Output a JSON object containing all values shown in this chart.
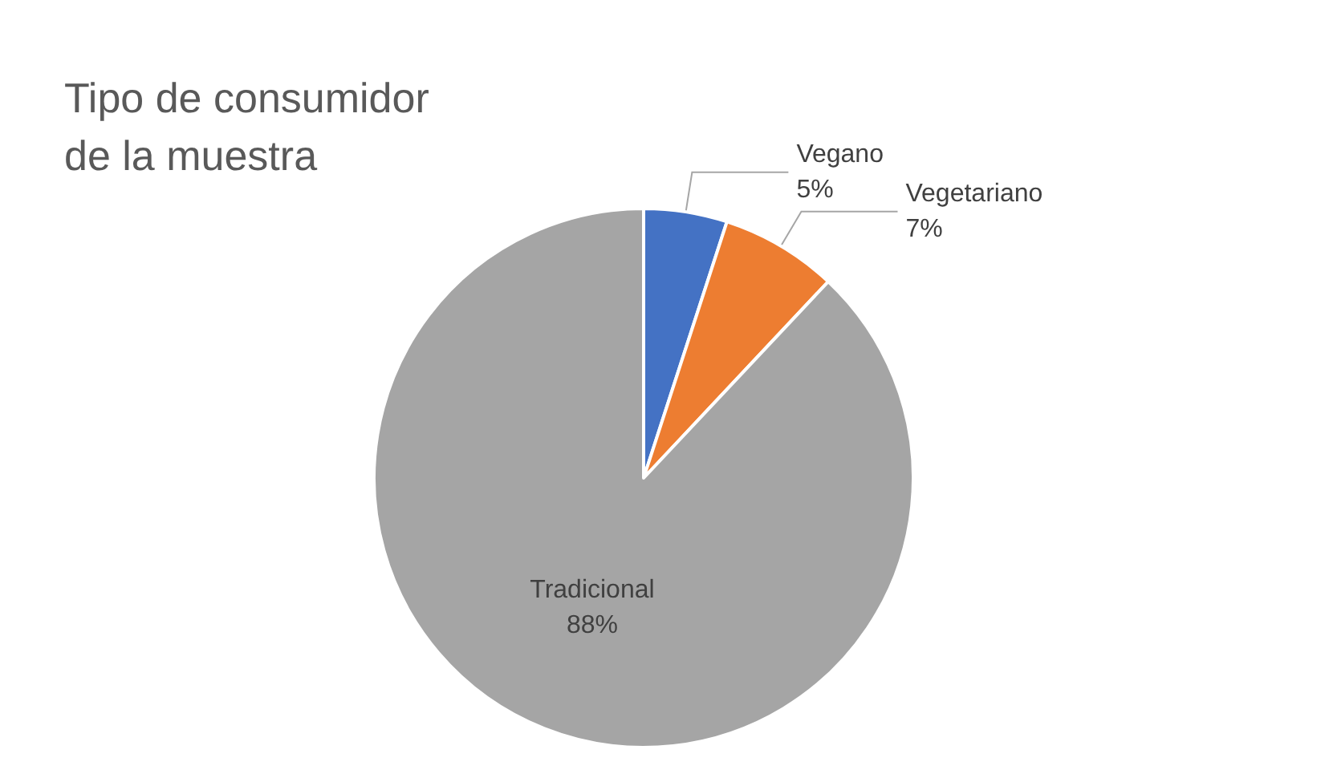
{
  "chart_data": {
    "type": "pie",
    "title": "Tipo de consumidor\nde la muestra",
    "categories": [
      "Vegano",
      "Vegetariano",
      "Tradicional"
    ],
    "values": [
      5,
      7,
      88
    ],
    "colors": [
      "#4472c4",
      "#ed7d31",
      "#a5a5a5"
    ],
    "value_labels": [
      "5%",
      "7%",
      "88%"
    ],
    "legend": false
  }
}
